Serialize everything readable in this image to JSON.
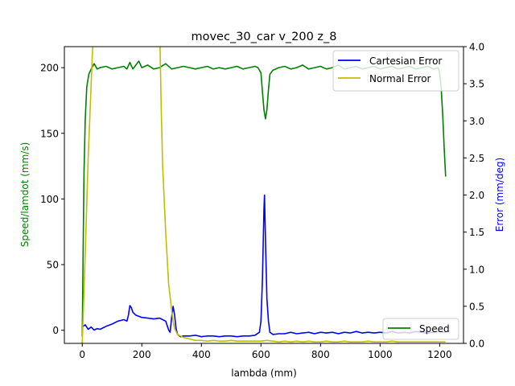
{
  "chart_data": {
    "type": "line",
    "title": "movec_30_car v_200 z_8",
    "xlabel": "lambda (mm)",
    "ylabel_left": "Speed/lamdot (mm/s)",
    "ylabel_right": "Error (mm/deg)",
    "xlim": [
      -60,
      1280
    ],
    "ylim_left": [
      -10,
      216
    ],
    "ylim_right": [
      0.0,
      4.0
    ],
    "x_ticks": [
      {
        "value": 0,
        "label": "0"
      },
      {
        "value": 200,
        "label": "200"
      },
      {
        "value": 400,
        "label": "400"
      },
      {
        "value": 600,
        "label": "600"
      },
      {
        "value": 800,
        "label": "800"
      },
      {
        "value": 1000,
        "label": "1000"
      },
      {
        "value": 1200,
        "label": "1200"
      }
    ],
    "y_ticks_left": [
      {
        "value": 0,
        "label": "0"
      },
      {
        "value": 50,
        "label": "50"
      },
      {
        "value": 100,
        "label": "100"
      },
      {
        "value": 150,
        "label": "150"
      },
      {
        "value": 200,
        "label": "200"
      }
    ],
    "y_ticks_right": [
      {
        "value": 0.0,
        "label": "0.0"
      },
      {
        "value": 0.5,
        "label": "0.5"
      },
      {
        "value": 1.0,
        "label": "1.0"
      },
      {
        "value": 1.5,
        "label": "1.5"
      },
      {
        "value": 2.0,
        "label": "2.0"
      },
      {
        "value": 2.5,
        "label": "2.5"
      },
      {
        "value": 3.0,
        "label": "3.0"
      },
      {
        "value": 3.5,
        "label": "3.5"
      },
      {
        "value": 4.0,
        "label": "4.0"
      }
    ],
    "grid": false,
    "series": [
      {
        "name": "Speed",
        "axis": "left",
        "color": "#008000",
        "points": [
          [
            0,
            -5
          ],
          [
            3,
            60
          ],
          [
            6,
            120
          ],
          [
            10,
            160
          ],
          [
            15,
            185
          ],
          [
            22,
            195
          ],
          [
            30,
            199
          ],
          [
            40,
            203
          ],
          [
            50,
            199
          ],
          [
            60,
            200
          ],
          [
            80,
            201
          ],
          [
            100,
            199
          ],
          [
            120,
            200
          ],
          [
            140,
            201
          ],
          [
            150,
            199
          ],
          [
            160,
            204
          ],
          [
            170,
            199
          ],
          [
            190,
            205
          ],
          [
            200,
            200
          ],
          [
            220,
            202
          ],
          [
            240,
            199
          ],
          [
            260,
            200
          ],
          [
            280,
            203
          ],
          [
            300,
            199
          ],
          [
            320,
            200
          ],
          [
            340,
            201
          ],
          [
            360,
            200
          ],
          [
            380,
            199
          ],
          [
            400,
            200
          ],
          [
            420,
            201
          ],
          [
            440,
            199
          ],
          [
            460,
            200
          ],
          [
            480,
            199
          ],
          [
            500,
            200
          ],
          [
            520,
            201
          ],
          [
            540,
            199
          ],
          [
            560,
            200
          ],
          [
            580,
            201
          ],
          [
            590,
            200
          ],
          [
            600,
            196
          ],
          [
            605,
            182
          ],
          [
            610,
            168
          ],
          [
            615,
            161
          ],
          [
            620,
            168
          ],
          [
            625,
            183
          ],
          [
            630,
            195
          ],
          [
            640,
            198
          ],
          [
            660,
            200
          ],
          [
            680,
            201
          ],
          [
            700,
            199
          ],
          [
            720,
            200
          ],
          [
            740,
            202
          ],
          [
            760,
            199
          ],
          [
            780,
            200
          ],
          [
            800,
            201
          ],
          [
            820,
            199
          ],
          [
            840,
            200
          ],
          [
            860,
            202
          ],
          [
            880,
            199
          ],
          [
            900,
            200
          ],
          [
            920,
            201
          ],
          [
            940,
            199
          ],
          [
            960,
            200
          ],
          [
            980,
            201
          ],
          [
            1000,
            199
          ],
          [
            1020,
            200
          ],
          [
            1040,
            201
          ],
          [
            1060,
            199
          ],
          [
            1080,
            200
          ],
          [
            1100,
            201
          ],
          [
            1120,
            199
          ],
          [
            1140,
            200
          ],
          [
            1160,
            201
          ],
          [
            1180,
            199
          ],
          [
            1195,
            200
          ],
          [
            1200,
            196
          ],
          [
            1205,
            185
          ],
          [
            1210,
            165
          ],
          [
            1215,
            140
          ],
          [
            1220,
            117
          ]
        ]
      },
      {
        "name": "Cartesian Error",
        "axis": "right",
        "color": "#0000ff",
        "points": [
          [
            0,
            0.22
          ],
          [
            10,
            0.25
          ],
          [
            20,
            0.19
          ],
          [
            30,
            0.22
          ],
          [
            40,
            0.18
          ],
          [
            50,
            0.2
          ],
          [
            60,
            0.19
          ],
          [
            80,
            0.23
          ],
          [
            100,
            0.26
          ],
          [
            120,
            0.3
          ],
          [
            140,
            0.32
          ],
          [
            150,
            0.3
          ],
          [
            155,
            0.38
          ],
          [
            160,
            0.51
          ],
          [
            165,
            0.48
          ],
          [
            170,
            0.42
          ],
          [
            180,
            0.38
          ],
          [
            200,
            0.35
          ],
          [
            220,
            0.34
          ],
          [
            240,
            0.33
          ],
          [
            260,
            0.34
          ],
          [
            270,
            0.32
          ],
          [
            280,
            0.3
          ],
          [
            290,
            0.18
          ],
          [
            295,
            0.15
          ],
          [
            300,
            0.35
          ],
          [
            305,
            0.5
          ],
          [
            310,
            0.38
          ],
          [
            315,
            0.2
          ],
          [
            320,
            0.12
          ],
          [
            330,
            0.09
          ],
          [
            340,
            0.1
          ],
          [
            360,
            0.1
          ],
          [
            380,
            0.11
          ],
          [
            400,
            0.09
          ],
          [
            420,
            0.1
          ],
          [
            440,
            0.1
          ],
          [
            460,
            0.09
          ],
          [
            480,
            0.1
          ],
          [
            500,
            0.1
          ],
          [
            520,
            0.09
          ],
          [
            540,
            0.1
          ],
          [
            560,
            0.1
          ],
          [
            580,
            0.11
          ],
          [
            595,
            0.15
          ],
          [
            600,
            0.3
          ],
          [
            605,
            0.85
          ],
          [
            610,
            1.8
          ],
          [
            612,
            2.0
          ],
          [
            615,
            1.4
          ],
          [
            620,
            0.6
          ],
          [
            625,
            0.3
          ],
          [
            630,
            0.15
          ],
          [
            640,
            0.12
          ],
          [
            660,
            0.13
          ],
          [
            680,
            0.13
          ],
          [
            700,
            0.15
          ],
          [
            720,
            0.13
          ],
          [
            740,
            0.14
          ],
          [
            760,
            0.15
          ],
          [
            780,
            0.13
          ],
          [
            800,
            0.15
          ],
          [
            820,
            0.14
          ],
          [
            840,
            0.15
          ],
          [
            860,
            0.13
          ],
          [
            880,
            0.15
          ],
          [
            900,
            0.14
          ],
          [
            920,
            0.16
          ],
          [
            940,
            0.14
          ],
          [
            960,
            0.15
          ],
          [
            980,
            0.14
          ],
          [
            1000,
            0.15
          ],
          [
            1020,
            0.14
          ],
          [
            1040,
            0.16
          ],
          [
            1060,
            0.14
          ],
          [
            1080,
            0.15
          ],
          [
            1100,
            0.14
          ],
          [
            1120,
            0.16
          ],
          [
            1140,
            0.15
          ],
          [
            1160,
            0.14
          ],
          [
            1180,
            0.15
          ],
          [
            1200,
            0.16
          ],
          [
            1220,
            0.15
          ]
        ]
      },
      {
        "name": "Normal Error",
        "axis": "right",
        "color": "#bfbf00",
        "points": [
          [
            0,
            0.0
          ],
          [
            10,
            1.2
          ],
          [
            20,
            2.5
          ],
          [
            30,
            3.5
          ],
          [
            38,
            4.3
          ],
          [
            260,
            4.3
          ],
          [
            265,
            3.2
          ],
          [
            270,
            2.4
          ],
          [
            280,
            1.5
          ],
          [
            290,
            0.8
          ],
          [
            300,
            0.45
          ],
          [
            305,
            0.3
          ],
          [
            310,
            0.2
          ],
          [
            320,
            0.12
          ],
          [
            330,
            0.1
          ],
          [
            340,
            0.08
          ],
          [
            360,
            0.06
          ],
          [
            380,
            0.04
          ],
          [
            400,
            0.04
          ],
          [
            420,
            0.03
          ],
          [
            440,
            0.04
          ],
          [
            460,
            0.03
          ],
          [
            480,
            0.03
          ],
          [
            500,
            0.04
          ],
          [
            520,
            0.03
          ],
          [
            540,
            0.03
          ],
          [
            560,
            0.03
          ],
          [
            580,
            0.03
          ],
          [
            600,
            0.03
          ],
          [
            620,
            0.04
          ],
          [
            640,
            0.03
          ],
          [
            660,
            0.02
          ],
          [
            680,
            0.03
          ],
          [
            700,
            0.02
          ],
          [
            720,
            0.03
          ],
          [
            740,
            0.02
          ],
          [
            760,
            0.03
          ],
          [
            780,
            0.02
          ],
          [
            800,
            0.02
          ],
          [
            820,
            0.03
          ],
          [
            840,
            0.02
          ],
          [
            860,
            0.02
          ],
          [
            880,
            0.03
          ],
          [
            900,
            0.02
          ],
          [
            920,
            0.02
          ],
          [
            940,
            0.02
          ],
          [
            960,
            0.03
          ],
          [
            980,
            0.02
          ],
          [
            1000,
            0.02
          ],
          [
            1020,
            0.02
          ],
          [
            1040,
            0.03
          ],
          [
            1060,
            0.02
          ],
          [
            1080,
            0.02
          ],
          [
            1100,
            0.02
          ],
          [
            1120,
            0.02
          ],
          [
            1140,
            0.02
          ],
          [
            1160,
            0.02
          ],
          [
            1180,
            0.02
          ],
          [
            1200,
            0.02
          ],
          [
            1220,
            0.02
          ]
        ]
      }
    ],
    "legends": [
      {
        "placement": "upper-right",
        "entries": [
          "Cartesian Error",
          "Normal Error"
        ]
      },
      {
        "placement": "lower-right",
        "entries": [
          "Speed"
        ]
      }
    ]
  }
}
